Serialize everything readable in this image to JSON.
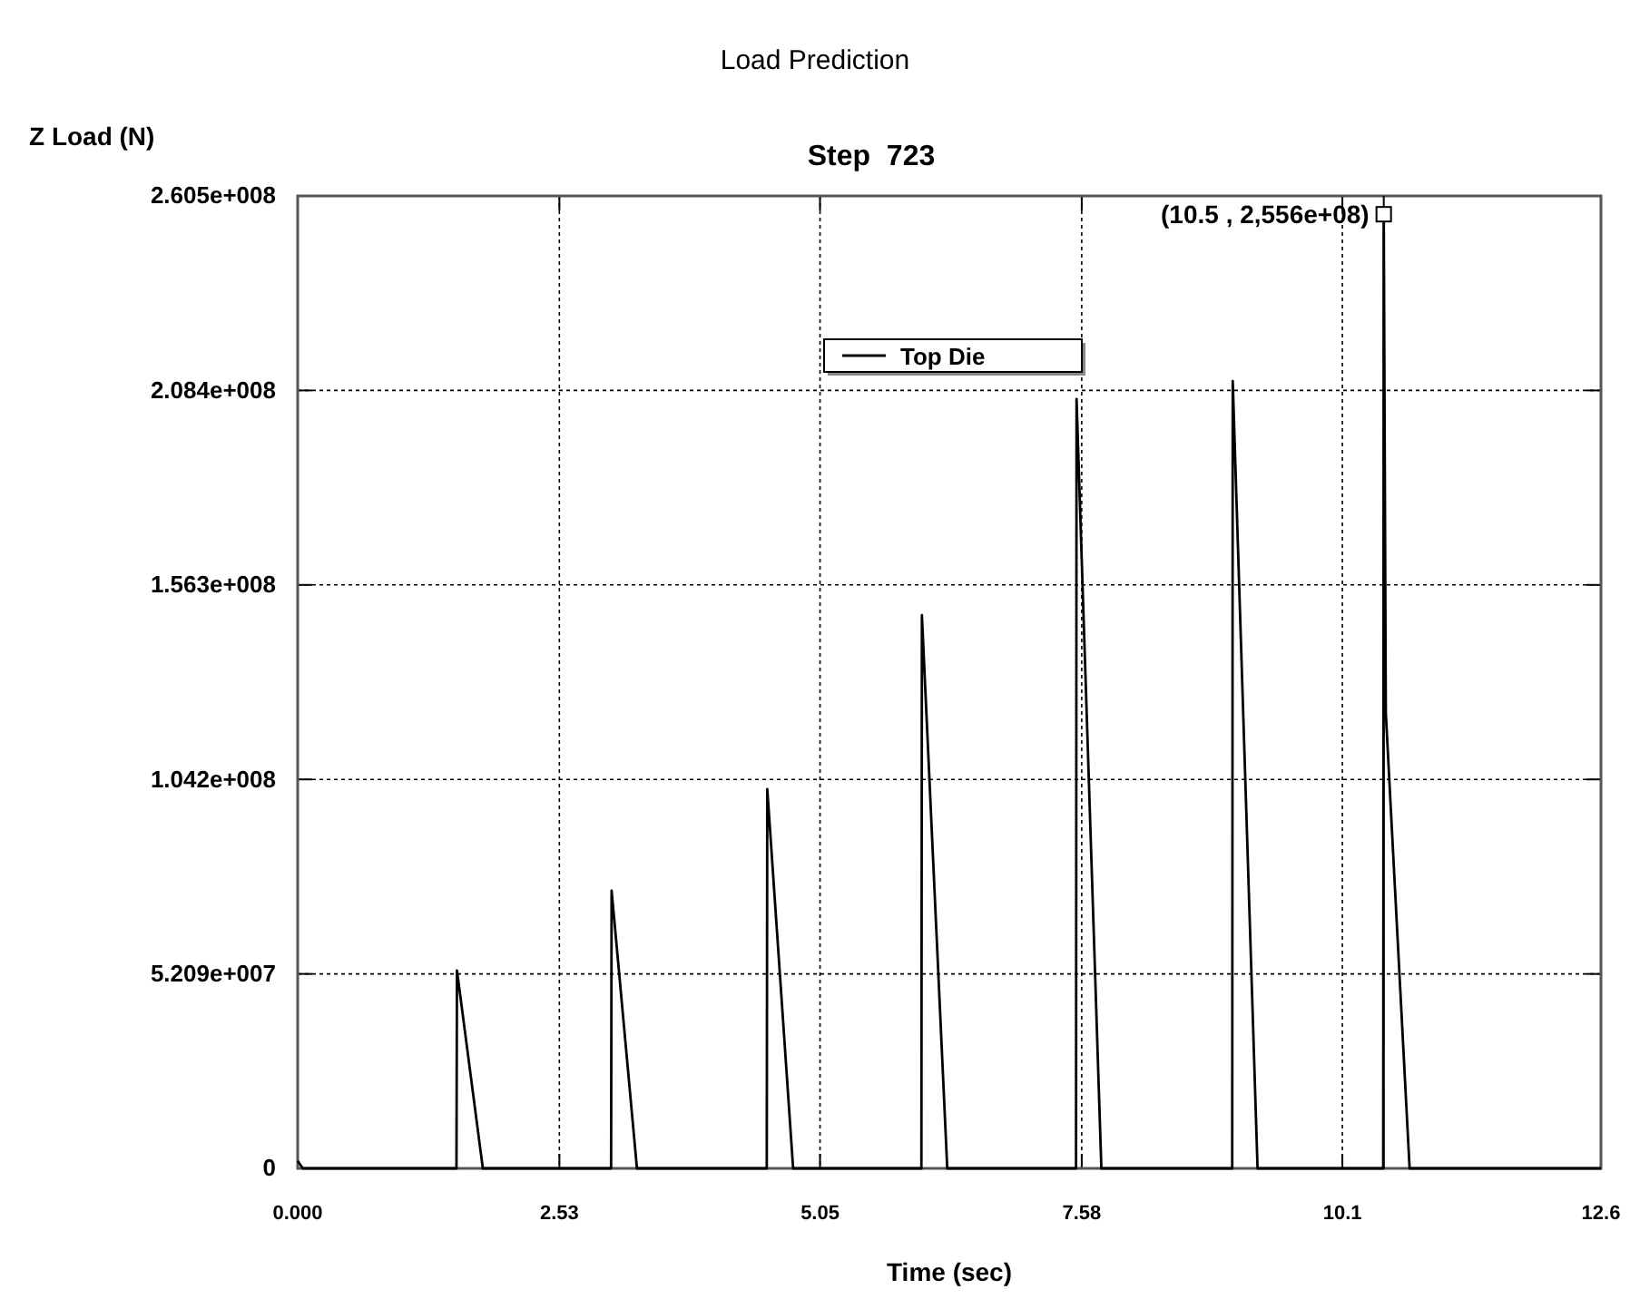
{
  "chart_data": {
    "type": "line",
    "title": "Load Prediction",
    "subtitle": "Step  723",
    "xlabel": "Time (sec)",
    "ylabel": "Z Load (N)",
    "x": [
      0,
      0.05,
      1.535,
      1.54,
      1.79,
      3.03,
      3.035,
      3.28,
      4.535,
      4.54,
      4.79,
      6.03,
      6.035,
      6.28,
      7.525,
      7.53,
      7.77,
      9.035,
      9.04,
      9.28,
      10.495,
      10.5,
      10.52,
      10.75,
      12.6
    ],
    "series": [
      {
        "name": "Top Die",
        "color": "#000000",
        "values": [
          2000000,
          0,
          0,
          53000000,
          0,
          0,
          74400000,
          0,
          0,
          101600000,
          0,
          0,
          148200000,
          0,
          0,
          206100000,
          0,
          0,
          210900000,
          0,
          0,
          255600000,
          122000000,
          0,
          0
        ]
      }
    ],
    "xlim": [
      0,
      12.6
    ],
    "ylim": [
      0,
      260500000
    ],
    "xticks": [
      {
        "value": 0,
        "label": "0.000"
      },
      2.53,
      5.05,
      7.58,
      10.1,
      12.6
    ],
    "yticks": [
      {
        "value": 0,
        "label": "0"
      },
      {
        "value": 52090000,
        "label": "5.209e+007"
      },
      {
        "value": 104200000,
        "label": "1.042e+008"
      },
      {
        "value": 156300000,
        "label": "1.563e+008"
      },
      {
        "value": 208400000,
        "label": "2.084e+008"
      },
      {
        "value": 260500000,
        "label": "2.605e+008"
      }
    ],
    "grid": true,
    "legend": "top",
    "marker": "none",
    "line_style": "solid",
    "ref_lines": [
      {
        "axis": "x",
        "value": 10.5,
        "color": "#000000"
      }
    ],
    "annotations": [
      {
        "text": "(10.5 , 2,556e+08)",
        "x": 10.5,
        "y": 255600000
      }
    ]
  }
}
